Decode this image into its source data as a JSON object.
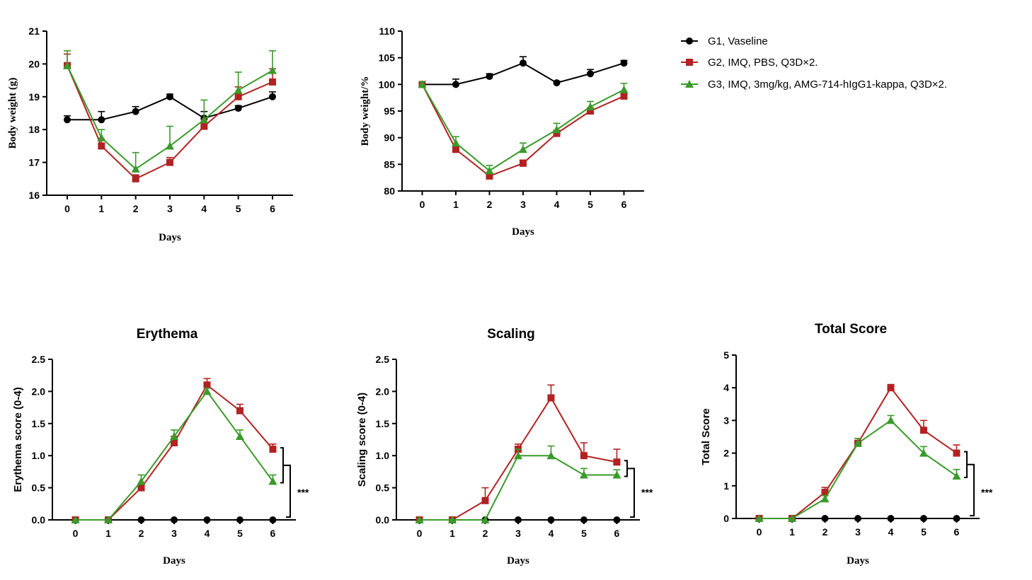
{
  "legend": [
    {
      "label": "G1, Vaseline",
      "color": "#000000",
      "marker": "circle"
    },
    {
      "label": "G2, IMQ, PBS,  Q3D×2.",
      "color": "#b22222",
      "marker": "square"
    },
    {
      "label": "G3, IMQ, 3mg/kg, AMG-714-hIgG1-kappa, Q3D×2.",
      "color": "#3a9a2a",
      "marker": "triangle"
    }
  ],
  "chart_data": [
    {
      "type": "line",
      "title": "",
      "xlabel": "Days",
      "ylabel": "Body weight (g)",
      "x": [
        0,
        1,
        2,
        3,
        4,
        5,
        6
      ],
      "xlim": [
        -0.6,
        6.6
      ],
      "ylim": [
        16,
        21
      ],
      "yticks": [
        "16",
        "17",
        "18",
        "19",
        "20",
        "21"
      ],
      "series": [
        {
          "name": "G1, Vaseline",
          "values": [
            18.3,
            18.3,
            18.55,
            19.0,
            18.35,
            18.65,
            19.0
          ],
          "errors": [
            0.12,
            0.25,
            0.15,
            0.08,
            0.2,
            0.08,
            0.15
          ]
        },
        {
          "name": "G2, IMQ, PBS,  Q3D×2.",
          "values": [
            19.95,
            17.5,
            16.5,
            17.0,
            18.1,
            19.0,
            19.45
          ],
          "errors": [
            0.35,
            0.2,
            0.12,
            0.15,
            0.2,
            0.3,
            0.4
          ]
        },
        {
          "name": "G3, IMQ, 3mg/kg, AMG-714-hIgG1-kappa, Q3D×2.",
          "values": [
            19.95,
            17.75,
            16.8,
            17.5,
            18.3,
            19.2,
            19.8
          ],
          "errors": [
            0.45,
            0.25,
            0.5,
            0.6,
            0.6,
            0.55,
            0.6
          ]
        }
      ]
    },
    {
      "type": "line",
      "title": "",
      "xlabel": "Days",
      "ylabel": "Body weight/%",
      "x": [
        0,
        1,
        2,
        3,
        4,
        5,
        6
      ],
      "xlim": [
        -0.6,
        6.6
      ],
      "ylim": [
        80,
        110
      ],
      "yticks": [
        "80",
        "85",
        "90",
        "95",
        "100",
        "105",
        "110"
      ],
      "series": [
        {
          "name": "G1, Vaseline",
          "values": [
            100,
            100,
            101.5,
            104,
            100.3,
            102,
            104
          ],
          "errors": [
            0.5,
            1.0,
            0.5,
            1.2,
            0.3,
            0.8,
            0.5
          ]
        },
        {
          "name": "G2, IMQ, PBS,  Q3D×2.",
          "values": [
            100,
            87.8,
            82.8,
            85.2,
            90.8,
            95.0,
            97.8
          ],
          "errors": [
            0.3,
            0.5,
            0.6,
            0.6,
            0.6,
            0.6,
            0.8
          ]
        },
        {
          "name": "G3, IMQ, 3mg/kg, AMG-714-hIgG1-kappa, Q3D×2.",
          "values": [
            100,
            89,
            83.8,
            87.8,
            91.5,
            95.8,
            99.0
          ],
          "errors": [
            0.5,
            1.2,
            1.0,
            1.2,
            1.2,
            1.0,
            1.2
          ]
        }
      ]
    },
    {
      "type": "line",
      "title": "Erythema",
      "xlabel": "Days",
      "ylabel": "Erythema score (0-4)",
      "x": [
        0,
        1,
        2,
        3,
        4,
        5,
        6
      ],
      "xlim": [
        -0.7,
        6.7
      ],
      "ylim": [
        0,
        2.5
      ],
      "yticks": [
        "0.0",
        "0.5",
        "1.0",
        "1.5",
        "2.0",
        "2.5"
      ],
      "significance": "***",
      "series": [
        {
          "name": "G1, Vaseline",
          "values": [
            0,
            0,
            0,
            0,
            0,
            0,
            0
          ],
          "errors": [
            0,
            0,
            0,
            0,
            0,
            0,
            0
          ]
        },
        {
          "name": "G2, IMQ, PBS,  Q3D×2.",
          "values": [
            0,
            0,
            0.5,
            1.2,
            2.1,
            1.7,
            1.1
          ],
          "errors": [
            0,
            0,
            0.05,
            0.1,
            0.1,
            0.1,
            0.08
          ]
        },
        {
          "name": "G3, IMQ, 3mg/kg, AMG-714-hIgG1-kappa, Q3D×2.",
          "values": [
            0,
            0,
            0.6,
            1.3,
            2.0,
            1.3,
            0.6
          ],
          "errors": [
            0,
            0,
            0.1,
            0.1,
            0.05,
            0.1,
            0.1
          ]
        }
      ]
    },
    {
      "type": "line",
      "title": "Scaling",
      "xlabel": "Days",
      "ylabel": "Scaling score (0-4)",
      "x": [
        0,
        1,
        2,
        3,
        4,
        5,
        6
      ],
      "xlim": [
        -0.7,
        6.7
      ],
      "ylim": [
        0,
        2.5
      ],
      "yticks": [
        "0.0",
        "0.5",
        "1.0",
        "1.5",
        "2.0",
        "2.5"
      ],
      "significance": "***",
      "series": [
        {
          "name": "G1, Vaseline",
          "values": [
            0,
            0,
            0,
            0,
            0,
            0,
            0
          ],
          "errors": [
            0,
            0,
            0,
            0,
            0,
            0,
            0
          ]
        },
        {
          "name": "G2, IMQ, PBS,  Q3D×2.",
          "values": [
            0,
            0,
            0.3,
            1.1,
            1.9,
            1.0,
            0.9
          ],
          "errors": [
            0,
            0,
            0.2,
            0.08,
            0.2,
            0.2,
            0.2
          ]
        },
        {
          "name": "G3, IMQ, 3mg/kg, AMG-714-hIgG1-kappa, Q3D×2.",
          "values": [
            0,
            0,
            0,
            1.0,
            1.0,
            0.7,
            0.7
          ],
          "errors": [
            0,
            0,
            0,
            0.1,
            0.15,
            0.1,
            0.08
          ]
        }
      ]
    },
    {
      "type": "line",
      "title": "Total Score",
      "xlabel": "Days",
      "ylabel": "Total Score",
      "x": [
        0,
        1,
        2,
        3,
        4,
        5,
        6
      ],
      "xlim": [
        -0.7,
        6.7
      ],
      "ylim": [
        0,
        5
      ],
      "yticks": [
        "0",
        "1",
        "2",
        "3",
        "4",
        "5"
      ],
      "significance": "***",
      "series": [
        {
          "name": "G1, Vaseline",
          "values": [
            0,
            0,
            0,
            0,
            0,
            0,
            0
          ],
          "errors": [
            0,
            0,
            0,
            0,
            0,
            0,
            0
          ]
        },
        {
          "name": "G2, IMQ, PBS,  Q3D×2.",
          "values": [
            0,
            0,
            0.8,
            2.3,
            4.0,
            2.7,
            2.0
          ],
          "errors": [
            0,
            0,
            0.15,
            0.15,
            0.1,
            0.3,
            0.25
          ]
        },
        {
          "name": "G3, IMQ, 3mg/kg, AMG-714-hIgG1-kappa, Q3D×2.",
          "values": [
            0,
            0,
            0.6,
            2.3,
            3.0,
            2.0,
            1.3
          ],
          "errors": [
            0,
            0,
            0.1,
            0.15,
            0.15,
            0.2,
            0.2
          ]
        }
      ]
    }
  ]
}
